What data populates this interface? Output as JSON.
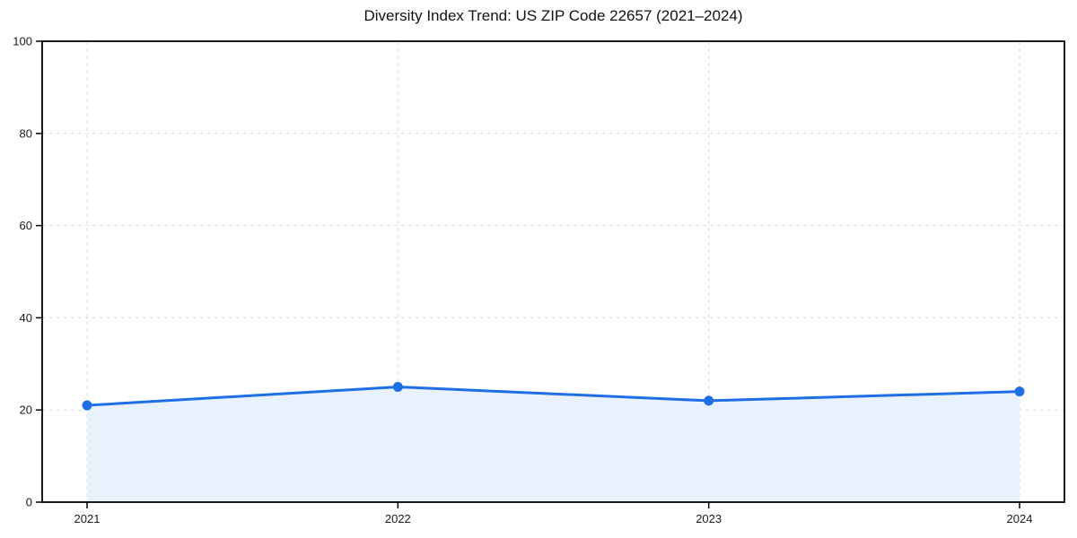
{
  "figure": {
    "background": "#ffffff"
  },
  "chart_data": {
    "type": "area",
    "title": "Diversity Index Trend: US ZIP Code 22657 (2021–2024)",
    "categories": [
      "2021",
      "2022",
      "2023",
      "2024"
    ],
    "series": [
      {
        "name": "Diversity Index",
        "values": [
          21,
          25,
          22,
          24
        ]
      }
    ],
    "xlabel": "",
    "ylabel": "",
    "ylim": [
      0,
      100
    ],
    "yticks": [
      0,
      20,
      40,
      60,
      80,
      100
    ],
    "grid": "dashed-both",
    "legend_position": "none",
    "marker": "circle",
    "colors": {
      "line": "#1e6ee6",
      "marker": "#1e6ee6",
      "fill": "#e9f1fc",
      "grid": "#dcdcdc",
      "axis": "#000000",
      "tick_label": "#1a1a1a",
      "title": "#111111"
    }
  }
}
